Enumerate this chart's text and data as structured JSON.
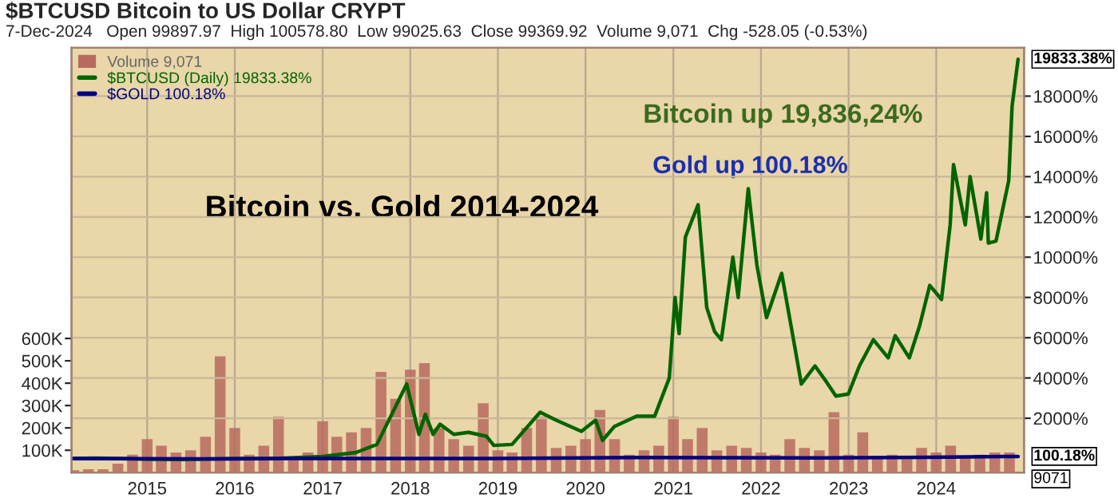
{
  "chart_data": {
    "type": "line",
    "title": "$BTCUSD Bitcoin to US Dollar CRYPT",
    "subtitle": "7-Dec-2024   Open 99897.97  High 100578.80  Low 99025.63  Close 99369.92  Volume 9,071  Chg -528.05 (-0.53%)",
    "annotations": [
      "Bitcoin vs. Gold 2014-2024",
      "Bitcoin up 19,836,24%",
      "Gold up 100.18%",
      "9071",
      "19833.38%",
      "100.18%"
    ],
    "xlim": [
      "2014-02-20",
      "2025-01-01"
    ],
    "xticks": [
      "2015",
      "2016",
      "2017",
      "2018",
      "2019",
      "2020",
      "2021",
      "2022",
      "2023",
      "2024"
    ],
    "ylim": [
      0,
      1900000
    ],
    "yticks": [
      {
        "value": 100000,
        "label": "100K"
      },
      {
        "value": 200000,
        "label": "200K"
      },
      {
        "value": 300000,
        "label": "300K"
      },
      {
        "value": 400000,
        "label": "400K"
      },
      {
        "value": 500000,
        "label": "500K"
      },
      {
        "value": 600000,
        "label": "600K"
      }
    ],
    "y2lim": [
      -700,
      20400
    ],
    "y2ticks": [
      {
        "value": 2000,
        "label": "2000%"
      },
      {
        "value": 4000,
        "label": "4000%"
      },
      {
        "value": 6000,
        "label": "6000%"
      },
      {
        "value": 8000,
        "label": "8000%"
      },
      {
        "value": 10000,
        "label": "10000%"
      },
      {
        "value": 12000,
        "label": "12000%"
      },
      {
        "value": 14000,
        "label": "14000%"
      },
      {
        "value": 16000,
        "label": "16000%"
      },
      {
        "value": 18000,
        "label": "18000%"
      }
    ],
    "grid": true,
    "legend": "top left",
    "series": [
      {
        "name": "Volume 9,071",
        "type": "bar",
        "axis": "y",
        "color": "#b86a5e",
        "x": [
          "2014-03",
          "2014-05",
          "2014-07",
          "2014-09",
          "2014-11",
          "2015-01",
          "2015-03",
          "2015-05",
          "2015-07",
          "2015-09",
          "2015-11",
          "2016-01",
          "2016-03",
          "2016-05",
          "2016-07",
          "2016-09",
          "2016-11",
          "2017-01",
          "2017-03",
          "2017-05",
          "2017-07",
          "2017-09",
          "2017-11",
          "2018-01",
          "2018-03",
          "2018-05",
          "2018-07",
          "2018-09",
          "2018-11",
          "2019-01",
          "2019-03",
          "2019-05",
          "2019-07",
          "2019-09",
          "2019-11",
          "2020-01",
          "2020-03",
          "2020-05",
          "2020-07",
          "2020-09",
          "2020-11",
          "2021-01",
          "2021-03",
          "2021-05",
          "2021-07",
          "2021-09",
          "2021-11",
          "2022-01",
          "2022-03",
          "2022-05",
          "2022-07",
          "2022-09",
          "2022-11",
          "2023-01",
          "2023-03",
          "2023-05",
          "2023-07",
          "2023-09",
          "2023-11",
          "2024-01",
          "2024-03",
          "2024-05",
          "2024-07",
          "2024-09",
          "2024-11"
        ],
        "values": [
          10000,
          15000,
          15000,
          40000,
          80000,
          150000,
          120000,
          90000,
          100000,
          160000,
          520000,
          200000,
          80000,
          120000,
          250000,
          70000,
          90000,
          230000,
          160000,
          180000,
          200000,
          450000,
          330000,
          460000,
          490000,
          200000,
          150000,
          120000,
          310000,
          100000,
          90000,
          200000,
          250000,
          110000,
          120000,
          150000,
          280000,
          150000,
          80000,
          100000,
          120000,
          250000,
          150000,
          200000,
          100000,
          120000,
          110000,
          90000,
          80000,
          150000,
          110000,
          100000,
          270000,
          80000,
          180000,
          70000,
          80000,
          60000,
          110000,
          90000,
          120000,
          70000,
          80000,
          90000,
          90000
        ]
      },
      {
        "name": "$BTCUSD (Daily) 19833.38%",
        "axis": "y2",
        "color": "#006400",
        "x": [
          "2014-03-01",
          "2014-06-01",
          "2015-01-14",
          "2015-06-01",
          "2016-01-01",
          "2016-06-15",
          "2017-01-01",
          "2017-05-20",
          "2017-08-15",
          "2017-12-17",
          "2018-02-06",
          "2018-03-05",
          "2018-04-06",
          "2018-05-05",
          "2018-07-01",
          "2018-09-01",
          "2018-11-15",
          "2018-12-15",
          "2019-03-01",
          "2019-06-26",
          "2019-09-01",
          "2019-12-15",
          "2020-02-12",
          "2020-03-12",
          "2020-05-01",
          "2020-08-01",
          "2020-10-15",
          "2020-12-15",
          "2021-01-08",
          "2021-01-25",
          "2021-02-20",
          "2021-04-14",
          "2021-05-20",
          "2021-06-22",
          "2021-07-20",
          "2021-09-06",
          "2021-09-28",
          "2021-11-09",
          "2021-12-15",
          "2022-01-24",
          "2022-03-28",
          "2022-05-15",
          "2022-06-18",
          "2022-08-14",
          "2022-10-01",
          "2022-11-09",
          "2022-12-31",
          "2023-02-15",
          "2023-04-14",
          "2023-06-15",
          "2023-07-14",
          "2023-09-11",
          "2023-10-24",
          "2023-12-05",
          "2024-01-23",
          "2024-02-28",
          "2024-03-13",
          "2024-05-01",
          "2024-05-21",
          "2024-07-05",
          "2024-07-29",
          "2024-08-05",
          "2024-09-06",
          "2024-10-29",
          "2024-11-12",
          "2024-12-07"
        ],
        "values": [
          0,
          20,
          -40,
          -50,
          0,
          0,
          100,
          300,
          700,
          3700,
          1200,
          2200,
          1200,
          1700,
          1200,
          1300,
          1100,
          650,
          700,
          2300,
          1900,
          1350,
          1900,
          900,
          1600,
          2100,
          2100,
          4000,
          8000,
          6200,
          11000,
          12600,
          7500,
          6300,
          5900,
          10000,
          8000,
          13400,
          9600,
          7000,
          9200,
          6000,
          3700,
          4600,
          3800,
          3100,
          3200,
          4600,
          5900,
          5000,
          6100,
          5000,
          6600,
          8600,
          7900,
          11600,
          14600,
          11600,
          14000,
          10900,
          13200,
          10700,
          10800,
          13800,
          17500,
          19833.38
        ]
      },
      {
        "name": "$GOLD 100.18%",
        "axis": "y2",
        "color": "#000080",
        "x": [
          "2014-03-01",
          "2015-12-15",
          "2016-07-01",
          "2018-12-15",
          "2020-08-01",
          "2022-09-15",
          "2023-12-01",
          "2024-10-15",
          "2024-12-07"
        ],
        "values": [
          0,
          -20,
          0,
          0,
          50,
          30,
          60,
          100,
          100.18
        ]
      }
    ]
  }
}
